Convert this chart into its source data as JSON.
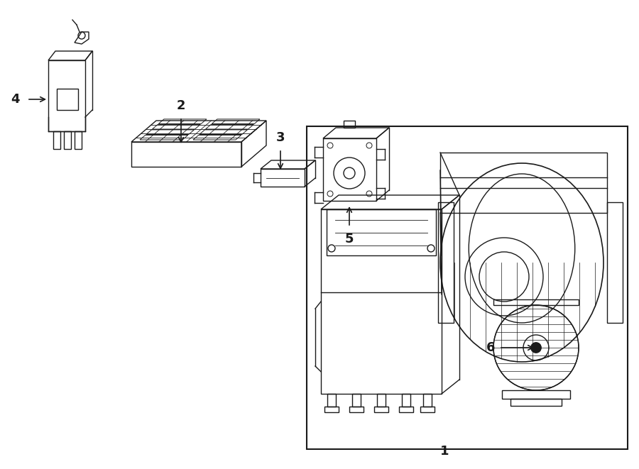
{
  "bg_color": "#ffffff",
  "line_color": "#1a1a1a",
  "lw": 1.0,
  "fig_w": 9.0,
  "fig_h": 6.61,
  "dpi": 100,
  "label_fs": 13
}
